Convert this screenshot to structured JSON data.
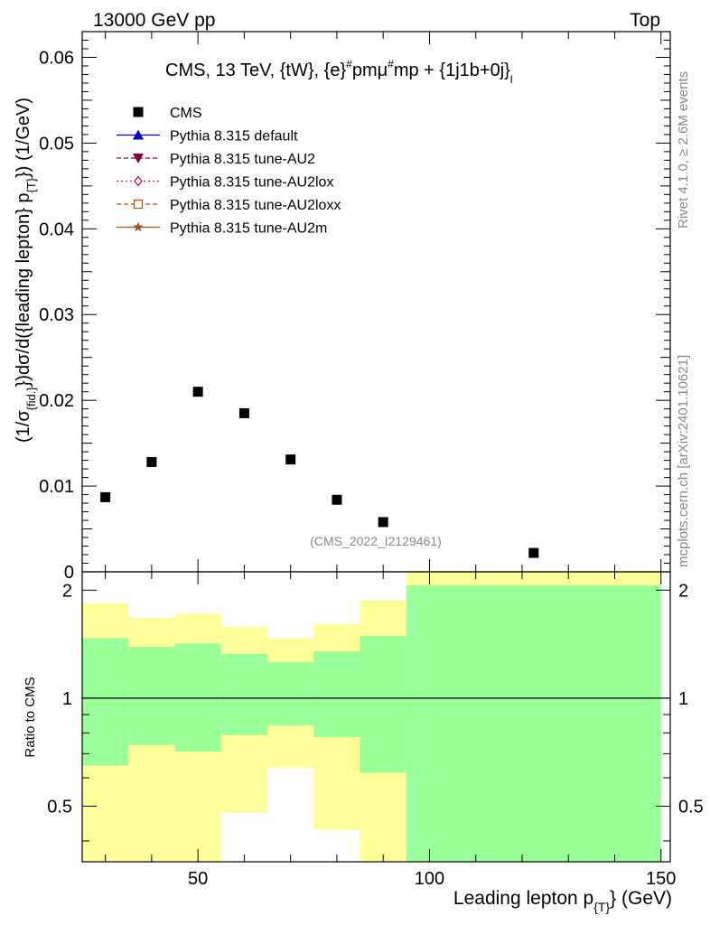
{
  "header": {
    "left": "13000 GeV pp",
    "right": "Top"
  },
  "side_labels": {
    "rivet": "Rivet 4.1.0, ≥ 2.6M events",
    "mcplots": "mcplots.cern.ch [arXiv:2401.10621]"
  },
  "watermark": "(CMS_2022_I2129461)",
  "chart_data": [
    {
      "type": "scatter",
      "title": "CMS, 13 TeV, {tW}, {e}#pmμ#mp + {1j1b+0j}",
      "title_main": "CMS, 13 TeV, {tW}, {e}",
      "title_sup1": "#",
      "title_mid": "pmμ",
      "title_sup2": "#",
      "title_tail": "mp + {1j1b+0j}",
      "title_sub": "l",
      "ylabel": "(1/σ_{fid.})dσ/d({leading lepton} p_{T}) (1/GeV)",
      "ylabel_a": "(1/σ",
      "ylabel_a_sub": "{fid.}",
      "ylabel_b": "})dσ/d({leading lepton} p",
      "ylabel_b_sub": "{T}",
      "ylabel_c": "}) (1/GeV)",
      "xlim": [
        25,
        152
      ],
      "ylim": [
        0,
        0.063
      ],
      "y_ticks": [
        "0",
        "0.01",
        "0.02",
        "0.03",
        "0.04",
        "0.05",
        "0.06"
      ],
      "y_tick_values": [
        0,
        0.01,
        0.02,
        0.03,
        0.04,
        0.05,
        0.06
      ],
      "series": [
        {
          "name": "CMS",
          "marker": "square",
          "color": "#000000",
          "x": [
            30,
            40,
            50,
            60,
            70,
            80,
            90,
            122.5
          ],
          "values": [
            0.0087,
            0.0128,
            0.021,
            0.0185,
            0.0131,
            0.0084,
            0.0058,
            0.0022
          ]
        }
      ],
      "legend": [
        {
          "label": "CMS",
          "marker": "square",
          "color": "#000000"
        },
        {
          "label": "Pythia 8.315 default",
          "marker": "triangle-up",
          "color": "#0000cc",
          "line": "solid"
        },
        {
          "label": "Pythia 8.315 tune-AU2",
          "marker": "triangle-down",
          "color": "#880044",
          "line": "dashed"
        },
        {
          "label": "Pythia 8.315 tune-AU2lox",
          "marker": "diamond-open",
          "color": "#aa1155",
          "line": "dotted"
        },
        {
          "label": "Pythia 8.315 tune-AU2loxx",
          "marker": "square-open",
          "color": "#cc4400",
          "line": "dashed"
        },
        {
          "label": "Pythia 8.315 tune-AU2m",
          "marker": "star",
          "color": "#995522",
          "line": "solid"
        }
      ],
      "legend_position": "top-left"
    },
    {
      "type": "area",
      "ylabel": "Ratio to CMS",
      "xlabel": "Leading lepton p_{T} (GeV)",
      "xlabel_main": "Leading lepton p",
      "xlabel_sub": "{T}",
      "xlabel_unit": "} (GeV)",
      "xlim": [
        25,
        152
      ],
      "ylim": [
        0.35,
        2.25
      ],
      "x_ticks": [
        "50",
        "100",
        "150"
      ],
      "x_tick_values": [
        50,
        100,
        150
      ],
      "y_ticks": [
        "0.5",
        "1",
        "2"
      ],
      "y_tick_values": [
        0.5,
        1,
        2
      ],
      "reference_line": 1,
      "bins": [
        {
          "lo": 25,
          "hi": 35,
          "green": [
            0.65,
            1.47
          ],
          "yellow": [
            0.35,
            1.84
          ]
        },
        {
          "lo": 35,
          "hi": 45,
          "green": [
            0.74,
            1.39
          ],
          "yellow": [
            0.35,
            1.67
          ]
        },
        {
          "lo": 45,
          "hi": 55,
          "green": [
            0.71,
            1.42
          ],
          "yellow": [
            0.35,
            1.72
          ]
        },
        {
          "lo": 55,
          "hi": 65,
          "green": [
            0.79,
            1.33
          ],
          "yellow": [
            0.48,
            1.58
          ]
        },
        {
          "lo": 65,
          "hi": 75,
          "green": [
            0.84,
            1.26
          ],
          "yellow": [
            0.64,
            1.47
          ]
        },
        {
          "lo": 75,
          "hi": 85,
          "green": [
            0.78,
            1.35
          ],
          "yellow": [
            0.43,
            1.61
          ]
        },
        {
          "lo": 85,
          "hi": 95,
          "green": [
            0.62,
            1.49
          ],
          "yellow": [
            0.35,
            1.87
          ]
        },
        {
          "lo": 95,
          "hi": 150,
          "green": [
            0.35,
            2.06
          ],
          "yellow": [
            0.35,
            2.25
          ]
        }
      ]
    }
  ],
  "colors": {
    "green_band": "#99ff99",
    "yellow_band": "#ffff99",
    "grey_text": "#888888"
  }
}
